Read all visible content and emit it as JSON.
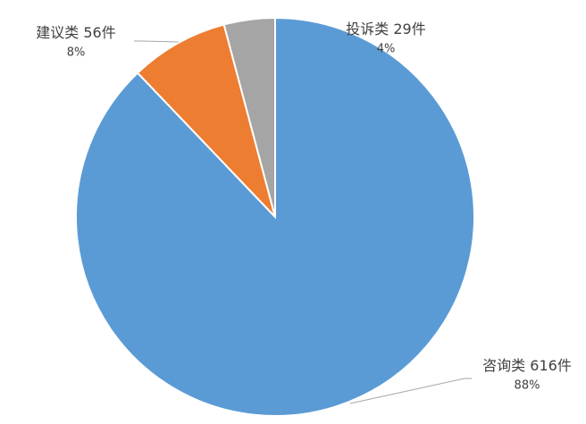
{
  "chart_data": {
    "type": "pie",
    "categories": [
      "咨询类",
      "建议类",
      "投诉类"
    ],
    "values": [
      616,
      56,
      29
    ],
    "value_labels": [
      "616件",
      "56件",
      "29件"
    ],
    "percent_labels": [
      "88%",
      "8%",
      "4%"
    ],
    "colors": [
      "#5b9bd5",
      "#ed7d31",
      "#a5a5a5"
    ]
  }
}
